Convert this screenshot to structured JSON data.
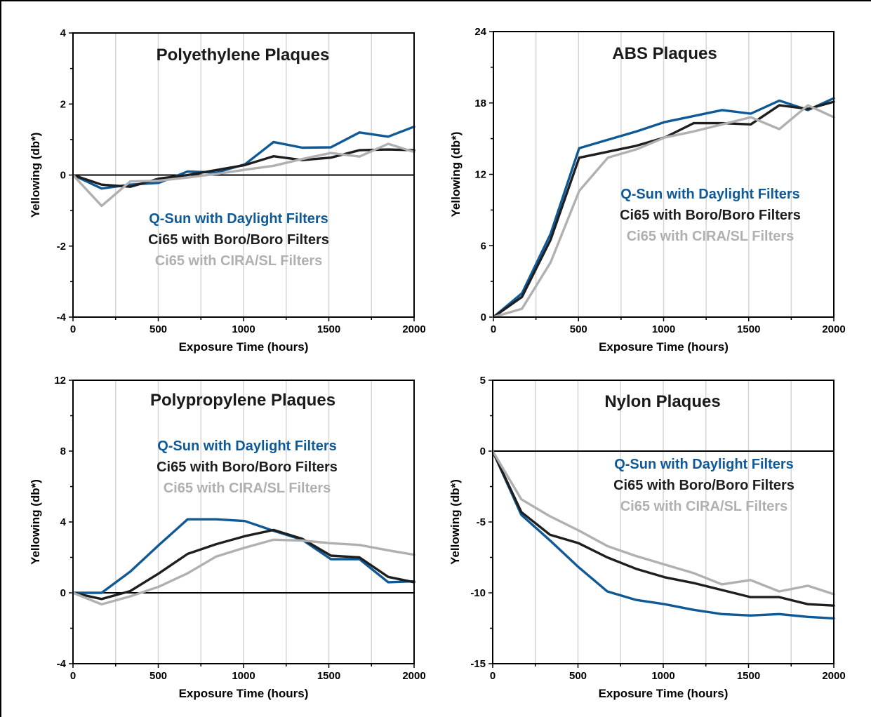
{
  "colors": {
    "qsun": "#0f5a96",
    "boro": "#1e1e1e",
    "cira": "#b0b0b0",
    "grid": "#d6d6d6"
  },
  "chart_data": [
    {
      "type": "line",
      "title": "Polyethylene Plaques",
      "xlabel": "Exposure Time (hours)",
      "ylabel": "Yellowing (db*)",
      "xlim": [
        0,
        2000
      ],
      "ylim": [
        -4,
        4
      ],
      "xticks": [
        0,
        500,
        1000,
        1500,
        2000
      ],
      "yticks": [
        -4,
        -2,
        0,
        2,
        4
      ],
      "legend_placement": "center",
      "x": [
        0,
        168,
        336,
        504,
        672,
        840,
        1008,
        1176,
        1344,
        1512,
        1680,
        1848,
        2000
      ],
      "series": [
        {
          "name": "Q-Sun with Daylight Filters",
          "color_key": "qsun",
          "values": [
            0,
            -0.38,
            -0.27,
            -0.22,
            0.1,
            0.07,
            0.3,
            0.93,
            0.77,
            0.78,
            1.2,
            1.08,
            1.36
          ]
        },
        {
          "name": "Ci65 with Boro/Boro Filters",
          "color_key": "boro",
          "values": [
            0,
            -0.27,
            -0.33,
            -0.1,
            0.0,
            0.14,
            0.28,
            0.53,
            0.42,
            0.49,
            0.7,
            0.72,
            0.7
          ]
        },
        {
          "name": "Ci65 with CIRA/SL Filters",
          "color_key": "cira",
          "values": [
            0,
            -0.87,
            -0.18,
            -0.16,
            -0.07,
            0.03,
            0.15,
            0.26,
            0.45,
            0.62,
            0.52,
            0.88,
            0.65
          ]
        }
      ]
    },
    {
      "type": "line",
      "title": "ABS Plaques",
      "xlabel": "Exposure Time (hours)",
      "ylabel": "Yellowing (db*)",
      "xlim": [
        0,
        2000
      ],
      "ylim": [
        0,
        24
      ],
      "xticks": [
        0,
        500,
        1000,
        1500,
        2000
      ],
      "yticks": [
        0,
        6,
        12,
        18,
        24
      ],
      "legend_placement": "center-right",
      "x": [
        0,
        168,
        336,
        504,
        672,
        840,
        1008,
        1176,
        1344,
        1512,
        1680,
        1848,
        2000
      ],
      "series": [
        {
          "name": "Q-Sun with Daylight Filters",
          "color_key": "qsun",
          "values": [
            0,
            2.0,
            7.0,
            14.2,
            14.9,
            15.6,
            16.4,
            16.9,
            17.4,
            17.1,
            18.2,
            17.4,
            18.4
          ]
        },
        {
          "name": "Ci65 with Boro/Boro Filters",
          "color_key": "boro",
          "values": [
            0,
            1.7,
            6.5,
            13.4,
            13.9,
            14.4,
            15.1,
            16.3,
            16.3,
            16.2,
            17.8,
            17.5,
            18.1
          ]
        },
        {
          "name": "Ci65 with CIRA/SL Filters",
          "color_key": "cira",
          "values": [
            0,
            0.7,
            4.6,
            10.6,
            13.4,
            14.1,
            15.1,
            15.6,
            16.2,
            16.8,
            15.8,
            17.8,
            16.8
          ]
        }
      ]
    },
    {
      "type": "line",
      "title": "Polypropylene Plaques",
      "xlabel": "Exposure Time (hours)",
      "ylabel": "Yellowing (db*)",
      "xlim": [
        0,
        2000
      ],
      "ylim": [
        -4,
        12
      ],
      "xticks": [
        0,
        500,
        1000,
        1500,
        2000
      ],
      "yticks": [
        -4,
        0,
        4,
        8,
        12
      ],
      "legend_placement": "upper-center",
      "x": [
        0,
        168,
        336,
        504,
        672,
        840,
        1008,
        1176,
        1344,
        1512,
        1680,
        1848,
        2000
      ],
      "series": [
        {
          "name": "Q-Sun with Daylight Filters",
          "color_key": "qsun",
          "values": [
            0,
            0.0,
            1.2,
            2.7,
            4.15,
            4.15,
            4.05,
            3.5,
            3.0,
            1.9,
            1.9,
            0.6,
            0.65
          ]
        },
        {
          "name": "Ci65 with Boro/Boro Filters",
          "color_key": "boro",
          "values": [
            0,
            -0.35,
            0.1,
            1.1,
            2.2,
            2.75,
            3.2,
            3.55,
            3.05,
            2.1,
            2.0,
            0.9,
            0.6
          ]
        },
        {
          "name": "Ci65 with CIRA/SL Filters",
          "color_key": "cira",
          "values": [
            0,
            -0.65,
            -0.2,
            0.35,
            1.1,
            2.05,
            2.55,
            3.0,
            2.95,
            2.8,
            2.7,
            2.4,
            2.15
          ]
        }
      ]
    },
    {
      "type": "line",
      "title": "Nylon Plaques",
      "xlabel": "Exposure Time (hours)",
      "ylabel": "Yellowing (db*)",
      "xlim": [
        0,
        2000
      ],
      "ylim": [
        -15,
        5
      ],
      "xticks": [
        0,
        500,
        1000,
        1500,
        2000
      ],
      "yticks": [
        -15,
        -10,
        -5,
        0,
        5
      ],
      "legend_placement": "upper-center",
      "x": [
        0,
        168,
        336,
        504,
        672,
        840,
        1008,
        1176,
        1344,
        1512,
        1680,
        1848,
        2000
      ],
      "series": [
        {
          "name": "Q-Sun with Daylight Filters",
          "color_key": "qsun",
          "values": [
            0,
            -4.5,
            -6.3,
            -8.2,
            -9.9,
            -10.5,
            -10.8,
            -11.2,
            -11.5,
            -11.6,
            -11.5,
            -11.7,
            -11.8
          ]
        },
        {
          "name": "Ci65 with Boro/Boro Filters",
          "color_key": "boro",
          "values": [
            0,
            -4.3,
            -5.9,
            -6.5,
            -7.5,
            -8.3,
            -8.9,
            -9.3,
            -9.8,
            -10.3,
            -10.3,
            -10.8,
            -10.9
          ]
        },
        {
          "name": "Ci65 with CIRA/SL Filters",
          "color_key": "cira",
          "values": [
            0,
            -3.4,
            -4.6,
            -5.6,
            -6.7,
            -7.4,
            -8.0,
            -8.6,
            -9.4,
            -9.1,
            -9.9,
            -9.5,
            -10.1
          ]
        }
      ]
    }
  ]
}
